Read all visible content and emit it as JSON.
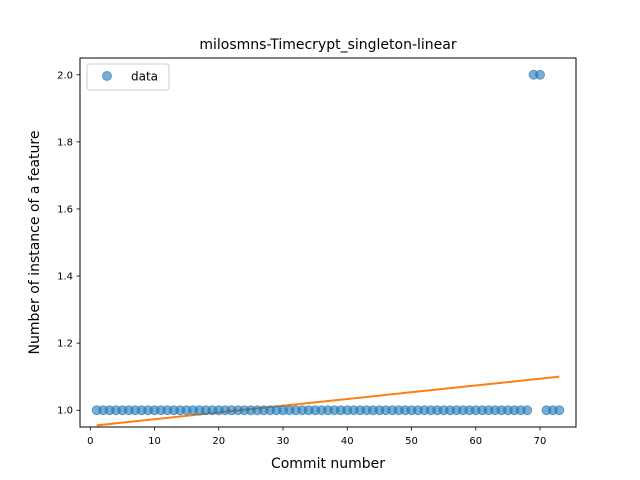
{
  "chart_data": {
    "type": "scatter",
    "title": "milosmns-Timecrypt_singleton-linear",
    "xlabel": "Commit number",
    "ylabel": "Number of instance of a feature",
    "xlim": [
      -1.6,
      75.6
    ],
    "ylim": [
      0.95,
      2.05
    ],
    "xticks": [
      0,
      10,
      20,
      30,
      40,
      50,
      60,
      70
    ],
    "yticks": [
      1.0,
      1.2,
      1.4,
      1.6,
      1.8,
      2.0
    ],
    "grid": false,
    "legend": {
      "placement": "upper-left",
      "entries": [
        "data"
      ]
    },
    "colors": {
      "data": "#1f77b4",
      "fit": "#ff7f0e"
    },
    "series": [
      {
        "name": "data",
        "kind": "scatter",
        "x": [
          1,
          2,
          3,
          4,
          5,
          6,
          7,
          8,
          9,
          10,
          11,
          12,
          13,
          14,
          15,
          16,
          17,
          18,
          19,
          20,
          21,
          22,
          23,
          24,
          25,
          26,
          27,
          28,
          29,
          30,
          31,
          32,
          33,
          34,
          35,
          36,
          37,
          38,
          39,
          40,
          41,
          42,
          43,
          44,
          45,
          46,
          47,
          48,
          49,
          50,
          51,
          52,
          53,
          54,
          55,
          56,
          57,
          58,
          59,
          60,
          61,
          62,
          63,
          64,
          65,
          66,
          67,
          68,
          69,
          70,
          71,
          72,
          73
        ],
        "y": [
          1,
          1,
          1,
          1,
          1,
          1,
          1,
          1,
          1,
          1,
          1,
          1,
          1,
          1,
          1,
          1,
          1,
          1,
          1,
          1,
          1,
          1,
          1,
          1,
          1,
          1,
          1,
          1,
          1,
          1,
          1,
          1,
          1,
          1,
          1,
          1,
          1,
          1,
          1,
          1,
          1,
          1,
          1,
          1,
          1,
          1,
          1,
          1,
          1,
          1,
          1,
          1,
          1,
          1,
          1,
          1,
          1,
          1,
          1,
          1,
          1,
          1,
          1,
          1,
          1,
          1,
          1,
          1,
          2,
          2,
          1,
          1,
          1
        ]
      },
      {
        "kind": "line",
        "x": [
          1,
          73
        ],
        "y": [
          0.955,
          1.1
        ]
      }
    ]
  }
}
